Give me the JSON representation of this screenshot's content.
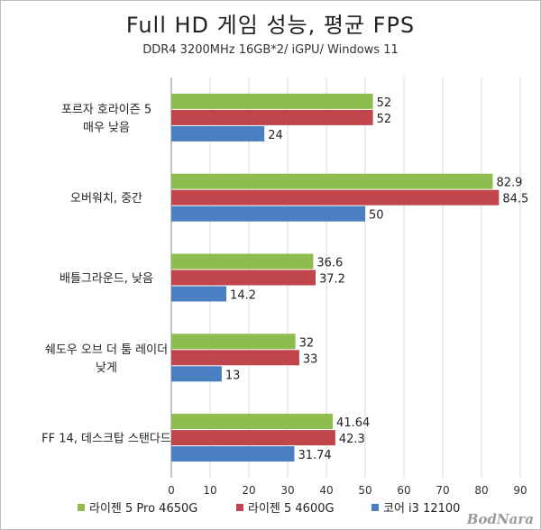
{
  "chart_data": {
    "type": "bar",
    "orientation": "horizontal",
    "title": "Full HD 게임 성능, 평균 FPS",
    "subtitle": "DDR4 3200MHz 16GB*2/ iGPU/ Windows 11",
    "categories": [
      [
        "포르자 호라이즌 5",
        "매우 낮음"
      ],
      [
        "오버워치, 중간"
      ],
      [
        "배틀그라운드, 낮음"
      ],
      [
        "쉐도우 오브 더 툼 레이더",
        "낮게"
      ],
      [
        "FF 14, 데스크탑 스탠다드"
      ]
    ],
    "series": [
      {
        "name": "라이젠 5 Pro 4650G",
        "color": "#8fbc4e",
        "values": [
          52,
          82.9,
          36.6,
          32,
          41.64
        ],
        "labels": [
          "52",
          "82.9",
          "36.6",
          "32",
          "41.64"
        ]
      },
      {
        "name": "라이젠 5 4600G",
        "color": "#c0464b",
        "values": [
          52,
          84.5,
          37.2,
          33,
          42.3
        ],
        "labels": [
          "52",
          "84.5",
          "37.2",
          "33",
          "42.3"
        ]
      },
      {
        "name": "코어 i3 12100",
        "color": "#4a7fc1",
        "values": [
          24,
          50,
          14.2,
          13,
          31.74
        ],
        "labels": [
          "24",
          "50",
          "14.2",
          "13",
          "31.74"
        ]
      }
    ],
    "xlim": [
      0,
      90
    ],
    "xticks": [
      "0",
      "10",
      "20",
      "30",
      "40",
      "50",
      "60",
      "70",
      "80",
      "90"
    ],
    "grid": true,
    "legend_position": "bottom"
  },
  "watermark": "BodNara"
}
